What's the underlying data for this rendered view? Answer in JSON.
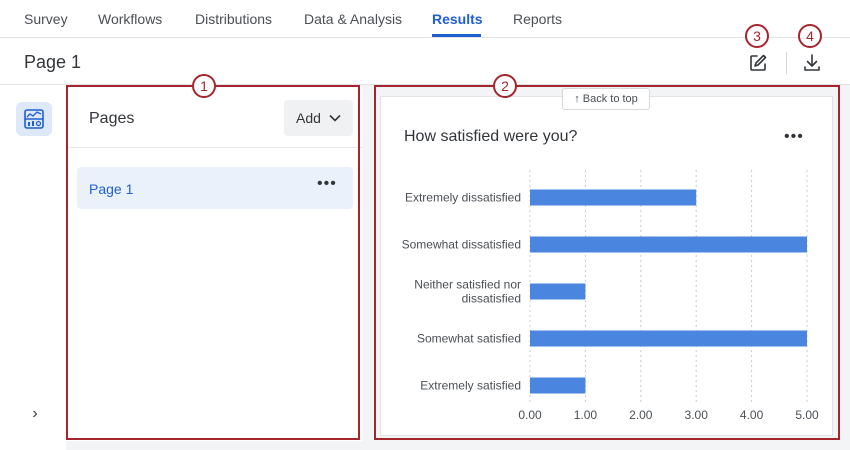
{
  "nav": {
    "tabs": [
      {
        "label": "Survey"
      },
      {
        "label": "Workflows"
      },
      {
        "label": "Distributions"
      },
      {
        "label": "Data & Analysis"
      },
      {
        "label": "Results"
      },
      {
        "label": "Reports"
      }
    ],
    "active_tab": "Results"
  },
  "header": {
    "page_title": "Page 1",
    "edit_icon": "edit-icon",
    "download_icon": "download-icon"
  },
  "sidebar": {
    "dashboard_icon": "dashboard-icon",
    "expand_icon": "chevron-right-icon",
    "expand_glyph": "›"
  },
  "pages_panel": {
    "heading": "Pages",
    "add_label": "Add",
    "items": [
      {
        "label": "Page 1",
        "more": "•••"
      }
    ]
  },
  "chart_card": {
    "back_to_top": "↑ Back to top",
    "more": "•••"
  },
  "annotations": [
    "1",
    "2",
    "3",
    "4"
  ],
  "colors": {
    "accent": "#1f5fd1",
    "bar": "#4a86e0",
    "annotation": "#a4262c",
    "selected_bg": "#eaf1fb"
  },
  "chart_data": {
    "type": "bar",
    "orientation": "horizontal",
    "title": "How satisfied were you?",
    "categories": [
      [
        "Extremely dissatisfied"
      ],
      [
        "Somewhat dissatisfied"
      ],
      [
        "Neither satisfied nor",
        "dissatisfied"
      ],
      [
        "Somewhat satisfied"
      ],
      [
        "Extremely satisfied"
      ]
    ],
    "values": [
      3,
      5,
      1,
      5,
      1
    ],
    "xlim": [
      0,
      5
    ],
    "xticks": [
      "0.00",
      "1.00",
      "2.00",
      "3.00",
      "4.00",
      "5.00"
    ],
    "grid": true,
    "legend": "none"
  }
}
